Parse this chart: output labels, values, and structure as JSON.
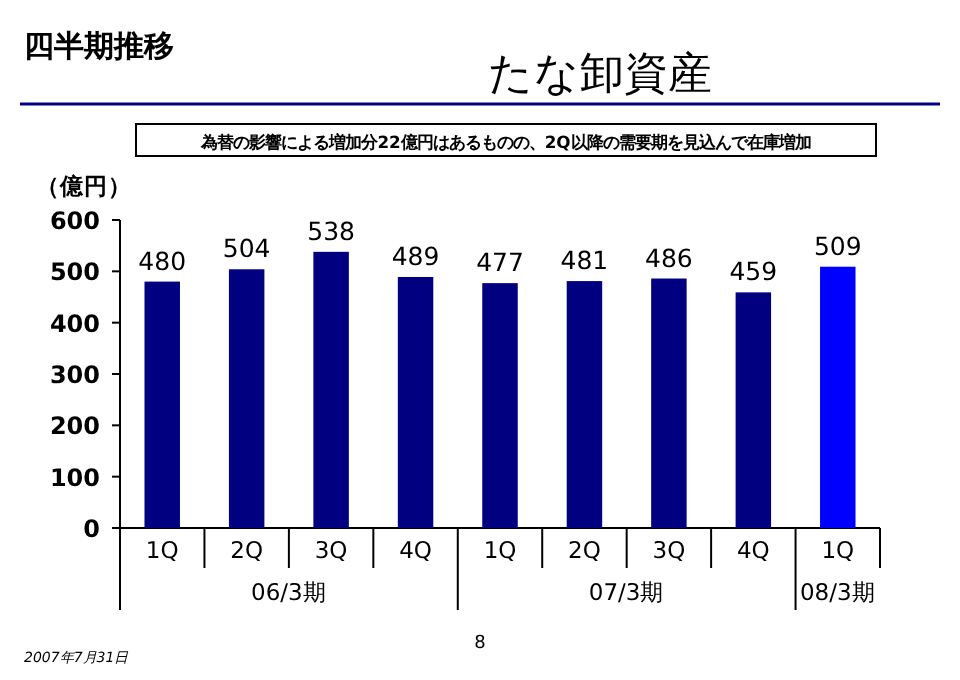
{
  "chart_data": {
    "type": "bar",
    "title": "たな卸資産",
    "subtitle": "為替の影響による増加分22億円はあるものの、2Q以降の需要期を見込んで在庫増加",
    "ylabel": "（億円）",
    "categories": [
      "1Q",
      "2Q",
      "3Q",
      "4Q",
      "1Q",
      "2Q",
      "3Q",
      "4Q",
      "1Q"
    ],
    "values": [
      480,
      504,
      538,
      489,
      477,
      481,
      486,
      459,
      509
    ],
    "colors": [
      "#000080",
      "#000080",
      "#000080",
      "#000080",
      "#000080",
      "#000080",
      "#000080",
      "#000080",
      "#0000ff"
    ],
    "ylim": [
      0,
      600
    ],
    "yticks": [
      0,
      100,
      200,
      300,
      400,
      500,
      600
    ],
    "grid": false,
    "data_labels": true,
    "annotations": [
      "四半期推移",
      "06/3期",
      "07/3期",
      "08/3期",
      "8",
      "2007年7月31日"
    ]
  }
}
